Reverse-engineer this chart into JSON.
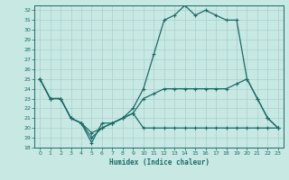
{
  "xlabel": "Humidex (Indice chaleur)",
  "xlim": [
    -0.5,
    23.5
  ],
  "ylim": [
    18,
    32.5
  ],
  "yticks": [
    18,
    19,
    20,
    21,
    22,
    23,
    24,
    25,
    26,
    27,
    28,
    29,
    30,
    31,
    32
  ],
  "xticks": [
    0,
    1,
    2,
    3,
    4,
    5,
    6,
    7,
    8,
    9,
    10,
    11,
    12,
    13,
    14,
    15,
    16,
    17,
    18,
    19,
    20,
    21,
    22,
    23
  ],
  "bg_color": "#c8e8e4",
  "grid_color": "#a8d0cc",
  "line_color": "#1a6b65",
  "line1_x": [
    0,
    1,
    2,
    3,
    4,
    5,
    6,
    7,
    8,
    9,
    10,
    11,
    12,
    13,
    14,
    15,
    16,
    17,
    18,
    19,
    20,
    21,
    22,
    23
  ],
  "line1_y": [
    25,
    23,
    23,
    21,
    20.5,
    18.5,
    20.5,
    20.5,
    21,
    22,
    24,
    27.5,
    31,
    31.5,
    32.5,
    31.5,
    32,
    31.5,
    31,
    31,
    25,
    23,
    21,
    20
  ],
  "line2_x": [
    0,
    1,
    2,
    3,
    4,
    5,
    6,
    7,
    8,
    9,
    10,
    11,
    12,
    13,
    14,
    15,
    16,
    17,
    18,
    19,
    20,
    21,
    22,
    23
  ],
  "line2_y": [
    25,
    23,
    23,
    21,
    20.5,
    19,
    20,
    20.5,
    21,
    21.5,
    23,
    23.5,
    24,
    24,
    24,
    24,
    24,
    24,
    24,
    24.5,
    25,
    23,
    21,
    20
  ],
  "line3_x": [
    0,
    1,
    2,
    3,
    4,
    5,
    6,
    7,
    8,
    9,
    10,
    11,
    12,
    13,
    14,
    15,
    16,
    17,
    18,
    19,
    20,
    21,
    22,
    23
  ],
  "line3_y": [
    25,
    23,
    23,
    21,
    20.5,
    19.5,
    20,
    20.5,
    21,
    21.5,
    20,
    20,
    20,
    20,
    20,
    20,
    20,
    20,
    20,
    20,
    20,
    20,
    20,
    20
  ]
}
